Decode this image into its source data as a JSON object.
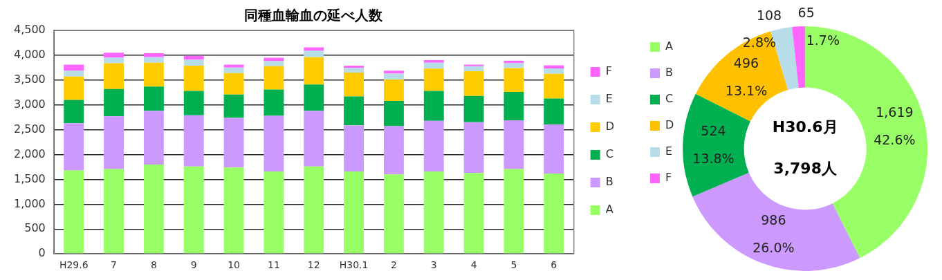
{
  "chart_data": [
    {
      "type": "bar",
      "title": "同種血輸血の延べ人数",
      "stacked": true,
      "categories": [
        "H29.6",
        "7",
        "8",
        "9",
        "10",
        "11",
        "12",
        "H30.1",
        "2",
        "3",
        "4",
        "5",
        "6"
      ],
      "series": [
        {
          "name": "A",
          "color": "#99ff66",
          "values": [
            1680,
            1710,
            1800,
            1760,
            1740,
            1660,
            1760,
            1660,
            1600,
            1660,
            1630,
            1710,
            1619
          ]
        },
        {
          "name": "B",
          "color": "#cc99ff",
          "values": [
            950,
            1060,
            1080,
            1030,
            1000,
            1120,
            1120,
            930,
            970,
            1020,
            1020,
            980,
            986
          ]
        },
        {
          "name": "C",
          "color": "#00b050",
          "values": [
            470,
            550,
            490,
            490,
            470,
            530,
            530,
            580,
            510,
            600,
            530,
            570,
            524
          ]
        },
        {
          "name": "D",
          "color": "#ffcc00",
          "values": [
            470,
            520,
            480,
            510,
            430,
            470,
            550,
            480,
            430,
            450,
            500,
            480,
            496
          ]
        },
        {
          "name": "E",
          "color": "#b7dde8",
          "values": [
            120,
            110,
            110,
            120,
            110,
            100,
            130,
            90,
            120,
            120,
            100,
            100,
            108
          ]
        },
        {
          "name": "F",
          "color": "#ff66ff",
          "values": [
            120,
            100,
            80,
            80,
            60,
            70,
            70,
            50,
            60,
            50,
            30,
            50,
            65
          ]
        }
      ],
      "ylim": [
        0,
        4500
      ],
      "yticks": [
        0,
        {
          "value": 500,
          "label": "500"
        },
        {
          "value": 1000,
          "label": "1,000"
        },
        {
          "value": 1500,
          "label": "1,500"
        },
        {
          "value": 2000,
          "label": "2,000"
        },
        {
          "value": 2500,
          "label": "2,500"
        },
        {
          "value": 3000,
          "label": "3,000"
        },
        {
          "value": 3500,
          "label": "3,500"
        },
        {
          "value": 4000,
          "label": "4,000"
        },
        {
          "value": 4500,
          "label": "4,500"
        }
      ],
      "grid": "y",
      "legend": "right"
    },
    {
      "type": "donut",
      "categories": [
        "A",
        "B",
        "C",
        "D",
        "E",
        "F"
      ],
      "values": [
        1619,
        986,
        524,
        496,
        108,
        65
      ],
      "colors": [
        "#99ff66",
        "#cc99ff",
        "#00b050",
        "#ffc000",
        "#b7dde8",
        "#ff66ff"
      ],
      "value_labels": [
        "1,619\n42.6%",
        "986\n26.0%",
        "524\n13.8%",
        "496\n13.1%",
        "108\n2.8%",
        "65\n1.7%"
      ],
      "annotations": [
        "H30.6月",
        "3,798人"
      ],
      "legend": "left"
    }
  ]
}
